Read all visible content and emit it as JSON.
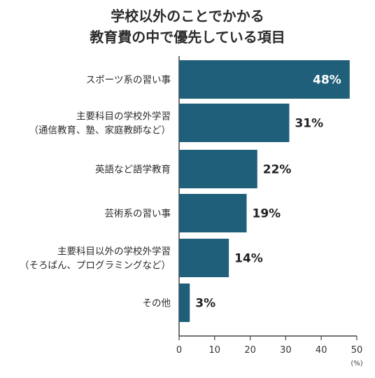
{
  "chart_data": {
    "type": "bar",
    "orientation": "horizontal",
    "title_lines": [
      "学校以外のことでかかる",
      "教育費の中で優先している項目"
    ],
    "categories": [
      [
        "スポーツ系の習い事"
      ],
      [
        "主要科目の学校外学習",
        "（通信教育、塾、家庭教師など）"
      ],
      [
        "英語など語学教育"
      ],
      [
        "芸術系の習い事"
      ],
      [
        "主要科目以外の学校外学習",
        "（そろばん、プログラミングなど）"
      ],
      [
        "その他"
      ]
    ],
    "values": [
      48,
      31,
      22,
      19,
      14,
      3
    ],
    "value_labels": [
      "48%",
      "31%",
      "22%",
      "19%",
      "14%",
      "3%"
    ],
    "xlim": [
      0,
      50
    ],
    "x_ticks": [
      0,
      10,
      20,
      30,
      40,
      50
    ],
    "x_unit": "(%)",
    "grid": false,
    "bar_color": "#1f5f7a"
  }
}
